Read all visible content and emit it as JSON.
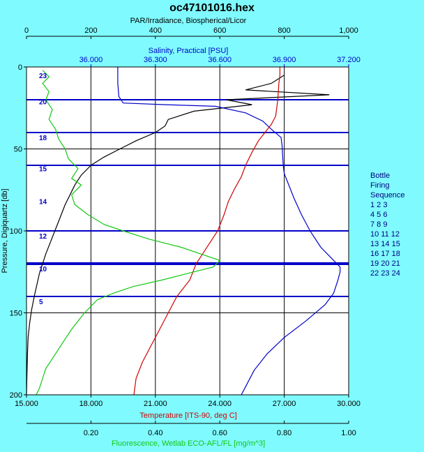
{
  "chart_data": {
    "type": "line",
    "title": "oc47101016.hex",
    "colors": {
      "background": "#7ffbff",
      "plot_background": "#ffffff",
      "par": "#000000",
      "salinity": "#0000c8",
      "temperature": "#d00000",
      "fluorescence": "#10c810",
      "bottle_lines": "#0000c8",
      "grid": "#000000",
      "legend_text": "#000080"
    },
    "axes": {
      "left": {
        "label": "Pressure, Digiquartz [db]",
        "range": [
          0,
          200
        ],
        "inverted": true,
        "ticks": [
          "0",
          "50",
          "100",
          "150",
          "200"
        ]
      },
      "top_outer": {
        "label": "PAR/Irradiance, Biospherical/Licor",
        "range": [
          0,
          1000
        ],
        "ticks": [
          "0",
          "200",
          "400",
          "600",
          "800",
          "1,000"
        ]
      },
      "top_inner": {
        "label": "Salinity, Practical [PSU]",
        "range": [
          35.7,
          37.2
        ],
        "ticks": [
          "36.000",
          "36.300",
          "36.600",
          "36.900",
          "37.200"
        ]
      },
      "bottom_inner": {
        "label": "Temperature [ITS-90, deg C]",
        "range": [
          15,
          30
        ],
        "ticks": [
          "15.000",
          "18.000",
          "21.000",
          "24.000",
          "27.000",
          "30.000"
        ]
      },
      "bottom_outer": {
        "label": "Fluorescence, Wetlab ECO-AFL/FL [mg/m^3]",
        "range": [
          0,
          1
        ],
        "ticks": [
          "0.20",
          "0.40",
          "0.60",
          "0.80",
          "1.00"
        ]
      },
      "grid": true
    },
    "bottle_lines": [
      {
        "pressure": 20,
        "label": "20"
      },
      {
        "pressure": 40,
        "label": ""
      },
      {
        "pressure": 60,
        "label": "15"
      },
      {
        "pressure": 100,
        "label": "12"
      },
      {
        "pressure": 120,
        "label": "10"
      },
      {
        "pressure": 140,
        "label": "5"
      }
    ],
    "bottle_markers": [
      {
        "pressure": 5,
        "label": "23"
      },
      {
        "pressure": 21,
        "label": "20"
      },
      {
        "pressure": 43,
        "label": "18"
      },
      {
        "pressure": 62,
        "label": "15"
      },
      {
        "pressure": 82,
        "label": "14"
      },
      {
        "pressure": 103,
        "label": "12"
      },
      {
        "pressure": 123,
        "label": "10"
      },
      {
        "pressure": 143,
        "label": "5"
      }
    ],
    "legend": {
      "title": [
        "Bottle",
        "Firing",
        "Sequence"
      ],
      "rows": [
        " 1  2  3",
        " 4  5  6",
        " 7  8  9",
        "10 11 12",
        "13 14 15",
        "16 17 18",
        "19 20 21",
        "22 23 24"
      ]
    },
    "series": [
      {
        "name": "PAR/Irradiance, Biospherical/Licor",
        "axis": "top_outer",
        "color": "#000000",
        "points": [
          [
            800,
            5
          ],
          [
            760,
            10
          ],
          [
            680,
            14
          ],
          [
            940,
            17
          ],
          [
            620,
            20
          ],
          [
            700,
            23
          ],
          [
            520,
            27
          ],
          [
            440,
            32
          ],
          [
            430,
            36
          ],
          [
            400,
            40
          ],
          [
            340,
            45
          ],
          [
            290,
            50
          ],
          [
            240,
            55
          ],
          [
            200,
            60
          ],
          [
            170,
            66
          ],
          [
            150,
            72
          ],
          [
            135,
            78
          ],
          [
            120,
            84
          ],
          [
            108,
            90
          ],
          [
            96,
            96
          ],
          [
            84,
            102
          ],
          [
            72,
            108
          ],
          [
            60,
            114
          ],
          [
            50,
            120
          ],
          [
            40,
            126
          ],
          [
            32,
            133
          ],
          [
            24,
            140
          ],
          [
            16,
            148
          ],
          [
            10,
            156
          ],
          [
            5,
            165
          ],
          [
            3,
            175
          ],
          [
            1,
            190
          ],
          [
            0,
            200
          ]
        ]
      },
      {
        "name": "Salinity, Practical [PSU]",
        "axis": "top_inner",
        "color": "#0000c8",
        "points": [
          [
            36.125,
            0
          ],
          [
            36.125,
            10
          ],
          [
            36.13,
            18
          ],
          [
            36.15,
            22
          ],
          [
            36.35,
            23
          ],
          [
            36.58,
            24
          ],
          [
            36.72,
            28
          ],
          [
            36.8,
            33
          ],
          [
            36.84,
            38
          ],
          [
            36.885,
            43
          ],
          [
            36.89,
            48
          ],
          [
            36.895,
            60
          ],
          [
            36.9,
            65
          ],
          [
            36.915,
            70
          ],
          [
            36.945,
            80
          ],
          [
            36.98,
            90
          ],
          [
            37.02,
            100
          ],
          [
            37.07,
            110
          ],
          [
            37.13,
            118
          ],
          [
            37.16,
            122
          ],
          [
            37.16,
            125
          ],
          [
            37.15,
            130
          ],
          [
            37.13,
            138
          ],
          [
            37.09,
            145
          ],
          [
            37.0,
            155
          ],
          [
            36.9,
            165
          ],
          [
            36.82,
            175
          ],
          [
            36.76,
            185
          ],
          [
            36.72,
            195
          ],
          [
            36.7,
            200
          ]
        ]
      },
      {
        "name": "Temperature [ITS-90, deg C]",
        "axis": "bottom_inner",
        "color": "#d00000",
        "points": [
          [
            26.8,
            0
          ],
          [
            26.8,
            5
          ],
          [
            26.75,
            10
          ],
          [
            26.7,
            20
          ],
          [
            26.6,
            30
          ],
          [
            26.4,
            35
          ],
          [
            26.1,
            40
          ],
          [
            25.8,
            45
          ],
          [
            25.5,
            52
          ],
          [
            25.2,
            60
          ],
          [
            25.0,
            67
          ],
          [
            24.7,
            74
          ],
          [
            24.4,
            82
          ],
          [
            24.2,
            90
          ],
          [
            23.9,
            100
          ],
          [
            23.5,
            108
          ],
          [
            23.2,
            114
          ],
          [
            22.9,
            120
          ],
          [
            22.6,
            130
          ],
          [
            22.0,
            140
          ],
          [
            21.6,
            150
          ],
          [
            21.2,
            160
          ],
          [
            20.8,
            170
          ],
          [
            20.4,
            180
          ],
          [
            20.1,
            190
          ],
          [
            20.0,
            200
          ]
        ]
      },
      {
        "name": "Fluorescence, Wetlab ECO-AFL/FL [mg/m^3]",
        "axis": "bottom_outer",
        "color": "#10c810",
        "points": [
          [
            0.05,
            2
          ],
          [
            0.07,
            6
          ],
          [
            0.05,
            10
          ],
          [
            0.07,
            15
          ],
          [
            0.06,
            20
          ],
          [
            0.08,
            26
          ],
          [
            0.07,
            32
          ],
          [
            0.09,
            38
          ],
          [
            0.1,
            44
          ],
          [
            0.12,
            50
          ],
          [
            0.13,
            56
          ],
          [
            0.16,
            62
          ],
          [
            0.14,
            68
          ],
          [
            0.17,
            72
          ],
          [
            0.14,
            78
          ],
          [
            0.15,
            84
          ],
          [
            0.19,
            90
          ],
          [
            0.24,
            96
          ],
          [
            0.3,
            100
          ],
          [
            0.38,
            105
          ],
          [
            0.48,
            110
          ],
          [
            0.54,
            114
          ],
          [
            0.6,
            118
          ],
          [
            0.58,
            122
          ],
          [
            0.5,
            126
          ],
          [
            0.42,
            130
          ],
          [
            0.33,
            134
          ],
          [
            0.27,
            138
          ],
          [
            0.22,
            142
          ],
          [
            0.2,
            146
          ],
          [
            0.18,
            150
          ],
          [
            0.16,
            155
          ],
          [
            0.14,
            160
          ],
          [
            0.12,
            166
          ],
          [
            0.1,
            172
          ],
          [
            0.08,
            178
          ],
          [
            0.06,
            184
          ],
          [
            0.05,
            190
          ],
          [
            0.04,
            196
          ],
          [
            0.03,
            200
          ]
        ]
      }
    ]
  }
}
